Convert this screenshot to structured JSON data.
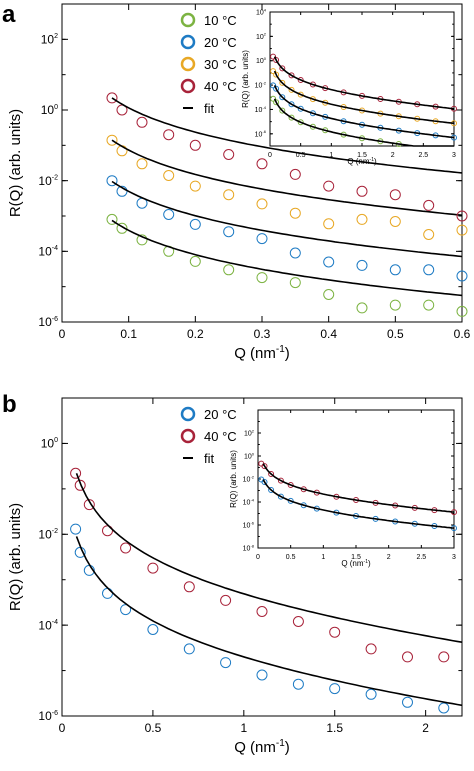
{
  "panels": [
    {
      "label": "a"
    },
    {
      "label": "b"
    }
  ],
  "chart_data": [
    {
      "type": "scatter",
      "panel": "a",
      "xlabel": "Q (nm-1)",
      "ylabel": "R(Q) (arb. units)",
      "xlim": [
        0,
        0.6
      ],
      "ylim": [
        1e-06,
        1000.0
      ],
      "yscale": "log",
      "xticks": [
        0,
        0.1,
        0.2,
        0.3,
        0.4,
        0.5,
        0.6
      ],
      "xtick_labels": [
        "0",
        "0.1",
        "0.2",
        "0.3",
        "0.4",
        "0.5",
        "0.6"
      ],
      "yticks": [
        1e-06,
        0.0001,
        0.01,
        1.0,
        100.0
      ],
      "ytick_labels": [
        {
          "base": "10",
          "exp": "-6"
        },
        {
          "base": "10",
          "exp": "-4"
        },
        {
          "base": "10",
          "exp": "-2"
        },
        {
          "base": "10",
          "exp": "0"
        },
        {
          "base": "10",
          "exp": "2"
        }
      ],
      "legend_position": "top-left",
      "legend": [
        {
          "label": "10 °C",
          "color": "#7cb342"
        },
        {
          "label": "20 °C",
          "color": "#1e7bc4"
        },
        {
          "label": "30 °C",
          "color": "#e8a825"
        },
        {
          "label": "40 °C",
          "color": "#a8233a"
        },
        {
          "label": "fit",
          "color": "#000000"
        }
      ],
      "series": [
        {
          "name": "10 °C",
          "color": "#7cb342",
          "A": 0.00075,
          "x0": 0.075,
          "x": [
            0.075,
            0.09,
            0.12,
            0.16,
            0.2,
            0.25,
            0.3,
            0.35,
            0.4,
            0.45,
            0.5,
            0.55,
            0.6
          ],
          "y": [
            0.0008,
            0.00045,
            0.00021,
            0.0001,
            5.2e-05,
            3e-05,
            1.8e-05,
            1.3e-05,
            6e-06,
            2.5e-06,
            3e-06,
            3e-06,
            2e-06
          ]
        },
        {
          "name": "20 °C",
          "color": "#1e7bc4",
          "A": 0.0095,
          "x0": 0.075,
          "x": [
            0.075,
            0.09,
            0.12,
            0.16,
            0.2,
            0.25,
            0.3,
            0.35,
            0.4,
            0.45,
            0.5,
            0.55,
            0.6
          ],
          "y": [
            0.01,
            0.005,
            0.0023,
            0.0011,
            0.00058,
            0.00036,
            0.00023,
            9e-05,
            5e-05,
            4e-05,
            3e-05,
            3e-05,
            2e-05
          ]
        },
        {
          "name": "30 °C",
          "color": "#e8a825",
          "A": 0.14,
          "x0": 0.075,
          "x": [
            0.075,
            0.09,
            0.12,
            0.16,
            0.2,
            0.25,
            0.3,
            0.35,
            0.4,
            0.45,
            0.5,
            0.55,
            0.6
          ],
          "y": [
            0.14,
            0.07,
            0.03,
            0.014,
            0.007,
            0.004,
            0.0022,
            0.0012,
            0.0006,
            0.0008,
            0.0007,
            0.0003,
            0.0004
          ]
        },
        {
          "name": "40 °C",
          "color": "#a8233a",
          "A": 2.2,
          "x0": 0.075,
          "x": [
            0.075,
            0.09,
            0.12,
            0.16,
            0.2,
            0.25,
            0.3,
            0.35,
            0.4,
            0.45,
            0.5,
            0.55,
            0.6
          ],
          "y": [
            2.2,
            1.0,
            0.45,
            0.2,
            0.1,
            0.055,
            0.03,
            0.015,
            0.007,
            0.005,
            0.004,
            0.002,
            0.001
          ]
        }
      ],
      "inset": {
        "xlabel": "Q (nm-1)",
        "ylabel": "R(Q) (arb. units)",
        "xlim": [
          0,
          3
        ],
        "ylim": [
          1e-07,
          10000.0
        ],
        "yscale": "log",
        "xticks": [
          0,
          0.5,
          1,
          1.5,
          2,
          2.5,
          3
        ],
        "xtick_labels": [
          "0",
          "0.5",
          "1",
          "1.5",
          "2",
          "2.5",
          "3"
        ],
        "yticks": [
          1e-06,
          0.0001,
          0.01,
          1.0,
          100.0,
          10000.0
        ],
        "ytick_labels": [
          {
            "base": "10",
            "exp": "-6"
          },
          {
            "base": "10",
            "exp": "-4"
          },
          {
            "base": "10",
            "exp": "-2"
          },
          {
            "base": "10",
            "exp": "0"
          },
          {
            "base": "10",
            "exp": "2"
          },
          {
            "base": "10",
            "exp": "4"
          }
        ]
      }
    },
    {
      "type": "scatter",
      "panel": "b",
      "xlabel": "Q (nm-1)",
      "ylabel": "R(Q) (arb. units)",
      "xlim": [
        0,
        2.2
      ],
      "ylim": [
        1e-06,
        10.0
      ],
      "yscale": "log",
      "xticks": [
        0,
        0.5,
        1,
        1.5,
        2
      ],
      "xtick_labels": [
        "0",
        "0.5",
        "1",
        "1.5",
        "2"
      ],
      "yticks": [
        1e-06,
        0.0001,
        0.01,
        1.0
      ],
      "ytick_labels": [
        {
          "base": "10",
          "exp": "-6"
        },
        {
          "base": "10",
          "exp": "-4"
        },
        {
          "base": "10",
          "exp": "-2"
        },
        {
          "base": "10",
          "exp": "0"
        }
      ],
      "legend_position": "top-left",
      "legend": [
        {
          "label": "20 °C",
          "color": "#1e7bc4"
        },
        {
          "label": "40 °C",
          "color": "#a8233a"
        },
        {
          "label": "fit",
          "color": "#000000"
        }
      ],
      "series": [
        {
          "name": "20 °C",
          "color": "#1e7bc4",
          "A": 0.009,
          "x0": 0.08,
          "x": [
            0.075,
            0.1,
            0.15,
            0.25,
            0.35,
            0.5,
            0.7,
            0.9,
            1.1,
            1.3,
            1.5,
            1.7,
            1.9,
            2.1
          ],
          "y": [
            0.013,
            0.004,
            0.0016,
            0.0005,
            0.00022,
            8e-05,
            3e-05,
            1.5e-05,
            8e-06,
            5e-06,
            4e-06,
            3e-06,
            2e-06,
            1.5e-06
          ]
        },
        {
          "name": "40 °C",
          "color": "#a8233a",
          "A": 0.22,
          "x0": 0.08,
          "x": [
            0.075,
            0.1,
            0.15,
            0.25,
            0.35,
            0.5,
            0.7,
            0.9,
            1.1,
            1.3,
            1.5,
            1.7,
            1.9,
            2.1
          ],
          "y": [
            0.22,
            0.12,
            0.045,
            0.012,
            0.005,
            0.0018,
            0.0007,
            0.00035,
            0.0002,
            0.00012,
            7e-05,
            3e-05,
            2e-05,
            2e-05
          ]
        }
      ],
      "inset": {
        "xlabel": "Q (nm-1)",
        "ylabel": "R(Q) (arb. units)",
        "xlim": [
          0,
          3
        ],
        "ylim": [
          1e-08,
          10000.0
        ],
        "yscale": "log",
        "xticks": [
          0,
          0.5,
          1,
          1.5,
          2,
          2.5,
          3
        ],
        "xtick_labels": [
          "0",
          "0.5",
          "1",
          "1.5",
          "2",
          "2.5",
          "3"
        ],
        "yticks": [
          1e-08,
          1e-06,
          0.0001,
          0.01,
          1.0,
          100.0
        ],
        "ytick_labels": [
          {
            "base": "10",
            "exp": "-8"
          },
          {
            "base": "10",
            "exp": "-6"
          },
          {
            "base": "10",
            "exp": "-4"
          },
          {
            "base": "10",
            "exp": "-2"
          },
          {
            "base": "10",
            "exp": "0"
          },
          {
            "base": "10",
            "exp": "2"
          }
        ]
      }
    }
  ]
}
